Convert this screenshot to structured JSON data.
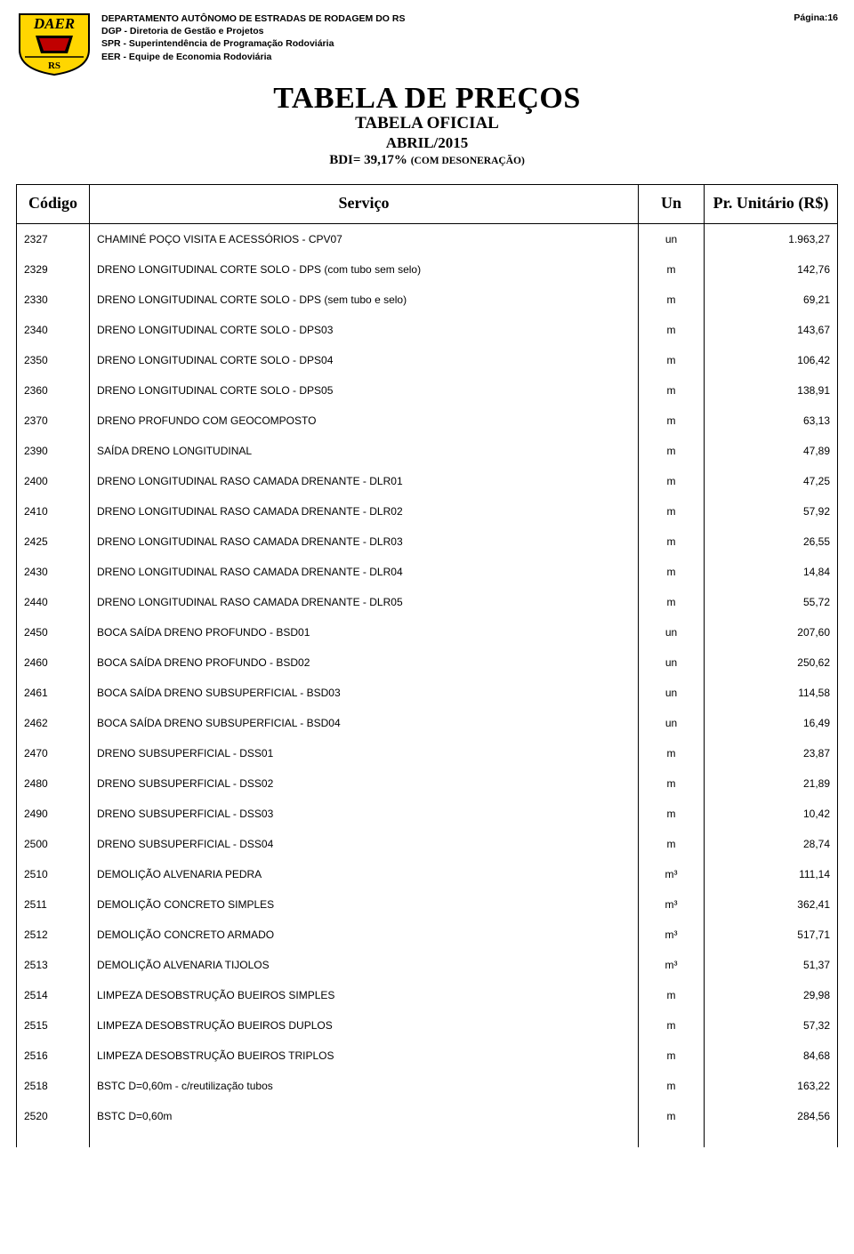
{
  "header": {
    "dept_line1": "DEPARTAMENTO AUTÔNOMO DE ESTRADAS DE RODAGEM DO RS",
    "dept_line2": "DGP - Diretoria de Gestão e Projetos",
    "dept_line3": "SPR - Superintendência de Programação Rodoviária",
    "dept_line4": "EER - Equipe de Economia Rodoviária",
    "page_label": "Página:16",
    "logo_text_top": "DAER",
    "logo_text_bottom": "RS",
    "logo_colors": {
      "bg": "#ffd600",
      "border": "#000000",
      "text": "#000000",
      "red": "#c00000"
    }
  },
  "title": {
    "main": "TABELA DE PREÇOS",
    "sub1": "TABELA OFICIAL",
    "sub2": "ABRIL/2015",
    "sub3_a": "BDI= 39,17% ",
    "sub3_b": "(COM DESONERAÇÃO)"
  },
  "table": {
    "columns": {
      "codigo": "Código",
      "servico": "Serviço",
      "un": "Un",
      "preco": "Pr. Unitário (R$)"
    },
    "rows": [
      {
        "codigo": "2327",
        "servico": "CHAMINÉ POÇO VISITA E ACESSÓRIOS - CPV07",
        "un": "un",
        "preco": "1.963,27"
      },
      {
        "codigo": "2329",
        "servico": "DRENO LONGITUDINAL CORTE SOLO - DPS (com tubo sem selo)",
        "un": "m",
        "preco": "142,76"
      },
      {
        "codigo": "2330",
        "servico": "DRENO LONGITUDINAL CORTE SOLO - DPS (sem tubo e selo)",
        "un": "m",
        "preco": "69,21"
      },
      {
        "codigo": "2340",
        "servico": "DRENO LONGITUDINAL CORTE SOLO - DPS03",
        "un": "m",
        "preco": "143,67"
      },
      {
        "codigo": "2350",
        "servico": "DRENO LONGITUDINAL CORTE SOLO - DPS04",
        "un": "m",
        "preco": "106,42"
      },
      {
        "codigo": "2360",
        "servico": "DRENO LONGITUDINAL CORTE SOLO - DPS05",
        "un": "m",
        "preco": "138,91"
      },
      {
        "codigo": "2370",
        "servico": "DRENO PROFUNDO COM GEOCOMPOSTO",
        "un": "m",
        "preco": "63,13"
      },
      {
        "codigo": "2390",
        "servico": "SAÍDA DRENO LONGITUDINAL",
        "un": "m",
        "preco": "47,89"
      },
      {
        "codigo": "2400",
        "servico": "DRENO LONGITUDINAL RASO CAMADA DRENANTE - DLR01",
        "un": "m",
        "preco": "47,25"
      },
      {
        "codigo": "2410",
        "servico": "DRENO LONGITUDINAL RASO CAMADA DRENANTE - DLR02",
        "un": "m",
        "preco": "57,92"
      },
      {
        "codigo": "2425",
        "servico": "DRENO LONGITUDINAL RASO CAMADA DRENANTE - DLR03",
        "un": "m",
        "preco": "26,55"
      },
      {
        "codigo": "2430",
        "servico": "DRENO LONGITUDINAL RASO CAMADA DRENANTE - DLR04",
        "un": "m",
        "preco": "14,84"
      },
      {
        "codigo": "2440",
        "servico": "DRENO LONGITUDINAL RASO CAMADA DRENANTE - DLR05",
        "un": "m",
        "preco": "55,72"
      },
      {
        "codigo": "2450",
        "servico": "BOCA SAÍDA DRENO PROFUNDO - BSD01",
        "un": "un",
        "preco": "207,60"
      },
      {
        "codigo": "2460",
        "servico": "BOCA SAÍDA DRENO PROFUNDO - BSD02",
        "un": "un",
        "preco": "250,62"
      },
      {
        "codigo": "2461",
        "servico": "BOCA SAÍDA DRENO SUBSUPERFICIAL - BSD03",
        "un": "un",
        "preco": "114,58"
      },
      {
        "codigo": "2462",
        "servico": "BOCA SAÍDA DRENO SUBSUPERFICIAL - BSD04",
        "un": "un",
        "preco": "16,49"
      },
      {
        "codigo": "2470",
        "servico": "DRENO SUBSUPERFICIAL - DSS01",
        "un": "m",
        "preco": "23,87"
      },
      {
        "codigo": "2480",
        "servico": "DRENO SUBSUPERFICIAL - DSS02",
        "un": "m",
        "preco": "21,89"
      },
      {
        "codigo": "2490",
        "servico": "DRENO SUBSUPERFICIAL - DSS03",
        "un": "m",
        "preco": "10,42"
      },
      {
        "codigo": "2500",
        "servico": "DRENO SUBSUPERFICIAL - DSS04",
        "un": "m",
        "preco": "28,74"
      },
      {
        "codigo": "2510",
        "servico": "DEMOLIÇÃO ALVENARIA PEDRA",
        "un": "m³",
        "preco": "111,14"
      },
      {
        "codigo": "2511",
        "servico": "DEMOLIÇÃO CONCRETO SIMPLES",
        "un": "m³",
        "preco": "362,41"
      },
      {
        "codigo": "2512",
        "servico": "DEMOLIÇÃO CONCRETO ARMADO",
        "un": "m³",
        "preco": "517,71"
      },
      {
        "codigo": "2513",
        "servico": "DEMOLIÇÃO ALVENARIA TIJOLOS",
        "un": "m³",
        "preco": "51,37"
      },
      {
        "codigo": "2514",
        "servico": "LIMPEZA DESOBSTRUÇÃO BUEIROS SIMPLES",
        "un": "m",
        "preco": "29,98"
      },
      {
        "codigo": "2515",
        "servico": "LIMPEZA DESOBSTRUÇÃO BUEIROS DUPLOS",
        "un": "m",
        "preco": "57,32"
      },
      {
        "codigo": "2516",
        "servico": "LIMPEZA DESOBSTRUÇÃO BUEIROS TRIPLOS",
        "un": "m",
        "preco": "84,68"
      },
      {
        "codigo": "2518",
        "servico": "BSTC D=0,60m - c/reutilização tubos",
        "un": "m",
        "preco": "163,22"
      },
      {
        "codigo": "2520",
        "servico": "BSTC D=0,60m",
        "un": "m",
        "preco": "284,56"
      }
    ]
  }
}
